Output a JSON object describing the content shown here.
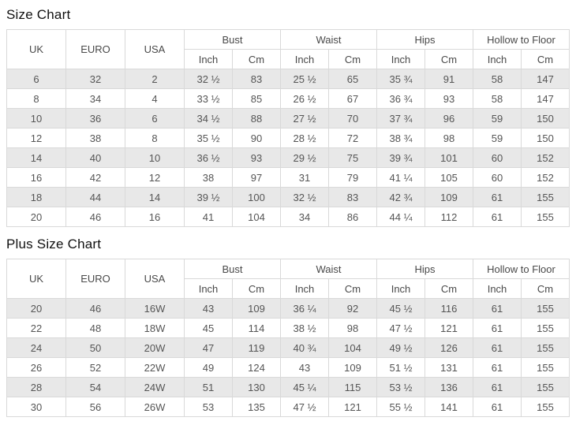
{
  "colors": {
    "row_stripe": "#e8e8e8",
    "row_plain": "#ffffff",
    "border": "#d9d9d9",
    "cell_text": "#555555",
    "title_text": "#111111"
  },
  "size_chart": {
    "title": "Size Chart",
    "simple_headers": [
      "UK",
      "EURO",
      "USA"
    ],
    "group_headers": [
      "Bust",
      "Waist",
      "Hips",
      "Hollow to Floor"
    ],
    "sub_headers": [
      "Inch",
      "Cm"
    ],
    "rows": [
      [
        "6",
        "32",
        "2",
        "32 ½",
        "83",
        "25 ½",
        "65",
        "35 ¾",
        "91",
        "58",
        "147"
      ],
      [
        "8",
        "34",
        "4",
        "33 ½",
        "85",
        "26 ½",
        "67",
        "36 ¾",
        "93",
        "58",
        "147"
      ],
      [
        "10",
        "36",
        "6",
        "34 ½",
        "88",
        "27 ½",
        "70",
        "37 ¾",
        "96",
        "59",
        "150"
      ],
      [
        "12",
        "38",
        "8",
        "35 ½",
        "90",
        "28 ½",
        "72",
        "38 ¾",
        "98",
        "59",
        "150"
      ],
      [
        "14",
        "40",
        "10",
        "36 ½",
        "93",
        "29 ½",
        "75",
        "39 ¾",
        "101",
        "60",
        "152"
      ],
      [
        "16",
        "42",
        "12",
        "38",
        "97",
        "31",
        "79",
        "41 ¼",
        "105",
        "60",
        "152"
      ],
      [
        "18",
        "44",
        "14",
        "39 ½",
        "100",
        "32 ½",
        "83",
        "42 ¾",
        "109",
        "61",
        "155"
      ],
      [
        "20",
        "46",
        "16",
        "41",
        "104",
        "34",
        "86",
        "44 ¼",
        "112",
        "61",
        "155"
      ]
    ]
  },
  "plus_size_chart": {
    "title": "Plus Size Chart",
    "simple_headers": [
      "UK",
      "EURO",
      "USA"
    ],
    "group_headers": [
      "Bust",
      "Waist",
      "Hips",
      "Hollow to Floor"
    ],
    "sub_headers": [
      "Inch",
      "Cm"
    ],
    "rows": [
      [
        "20",
        "46",
        "16W",
        "43",
        "109",
        "36 ¼",
        "92",
        "45 ½",
        "116",
        "61",
        "155"
      ],
      [
        "22",
        "48",
        "18W",
        "45",
        "114",
        "38 ½",
        "98",
        "47 ½",
        "121",
        "61",
        "155"
      ],
      [
        "24",
        "50",
        "20W",
        "47",
        "119",
        "40 ¾",
        "104",
        "49 ½",
        "126",
        "61",
        "155"
      ],
      [
        "26",
        "52",
        "22W",
        "49",
        "124",
        "43",
        "109",
        "51 ½",
        "131",
        "61",
        "155"
      ],
      [
        "28",
        "54",
        "24W",
        "51",
        "130",
        "45 ¼",
        "115",
        "53 ½",
        "136",
        "61",
        "155"
      ],
      [
        "30",
        "56",
        "26W",
        "53",
        "135",
        "47 ½",
        "121",
        "55 ½",
        "141",
        "61",
        "155"
      ]
    ]
  }
}
